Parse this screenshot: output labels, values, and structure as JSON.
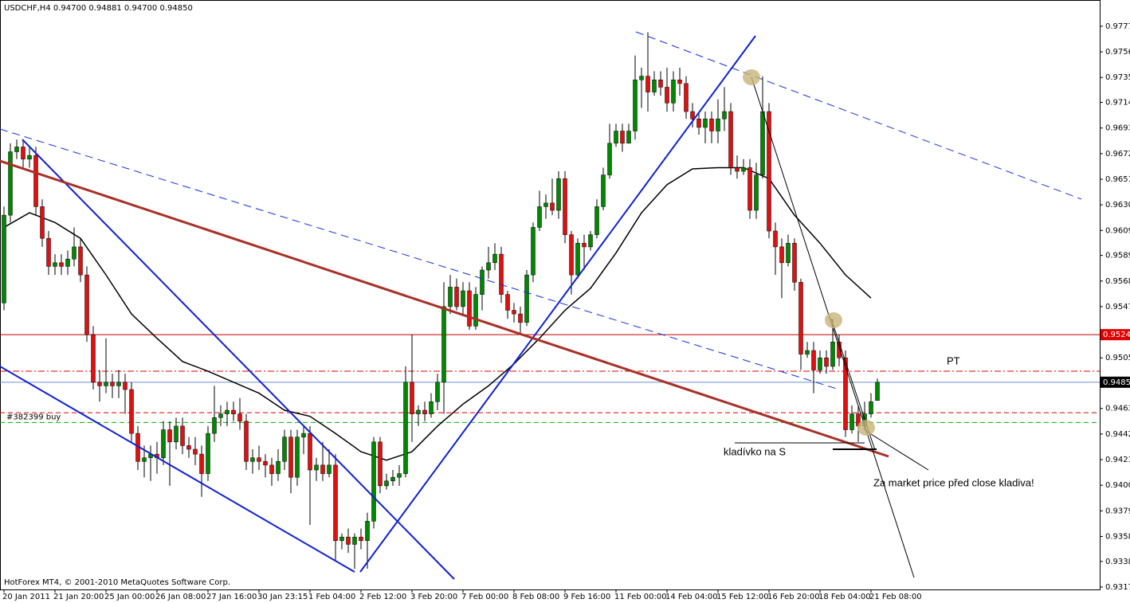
{
  "chart_data": {
    "type": "candlestick",
    "title": "USDCHF,H4  0.94700 0.94881 0.94700 0.94850",
    "footer": "HotForex MT4, © 2001-2010 MetaQuotes Software Corp.",
    "up_color": "#008800",
    "down_color": "#e01010",
    "wick_color": "#000000",
    "ylim": [
      0.9315,
      0.97985
    ],
    "yticks": [
      {
        "value": 0.9777,
        "label": "0.97770"
      },
      {
        "value": 0.9756,
        "label": "0.97560"
      },
      {
        "value": 0.9735,
        "label": "0.97350"
      },
      {
        "value": 0.97145,
        "label": "0.97145"
      },
      {
        "value": 0.96935,
        "label": "0.96935"
      },
      {
        "value": 0.96725,
        "label": "0.96725"
      },
      {
        "value": 0.96515,
        "label": "0.96515"
      },
      {
        "value": 0.96305,
        "label": "0.96305"
      },
      {
        "value": 0.96095,
        "label": "0.96095"
      },
      {
        "value": 0.9589,
        "label": "0.95890"
      },
      {
        "value": 0.9568,
        "label": "0.95680"
      },
      {
        "value": 0.9547,
        "label": "0.95470"
      },
      {
        "value": 0.9505,
        "label": "0.95050"
      },
      {
        "value": 0.94635,
        "label": "0.94635"
      },
      {
        "value": 0.94425,
        "label": "0.94425"
      },
      {
        "value": 0.94215,
        "label": "0.94215"
      },
      {
        "value": 0.94005,
        "label": "0.94005"
      },
      {
        "value": 0.93795,
        "label": "0.93795"
      },
      {
        "value": 0.93585,
        "label": "0.93585"
      },
      {
        "value": 0.9338,
        "label": "0.93380"
      },
      {
        "value": 0.9317,
        "label": "0.93170"
      }
    ],
    "categories": [
      "20 Jan 2011",
      null,
      null,
      null,
      null,
      null,
      null,
      null,
      "21 Jan 20:00",
      null,
      null,
      null,
      null,
      null,
      null,
      null,
      "25 Jan 00:00",
      null,
      null,
      null,
      null,
      null,
      null,
      null,
      "26 Jan 08:00",
      null,
      null,
      null,
      null,
      null,
      null,
      null,
      "27 Jan 16:00",
      null,
      null,
      null,
      null,
      null,
      null,
      null,
      "30 Jan 23:15",
      null,
      null,
      null,
      null,
      null,
      null,
      null,
      "1 Feb 04:00",
      null,
      null,
      null,
      null,
      null,
      null,
      null,
      "2 Feb 12:00",
      null,
      null,
      null,
      null,
      null,
      null,
      null,
      "3 Feb 20:00",
      null,
      null,
      null,
      null,
      null,
      null,
      null,
      "7 Feb 00:00",
      null,
      null,
      null,
      null,
      null,
      null,
      null,
      "8 Feb 08:00",
      null,
      null,
      null,
      null,
      null,
      null,
      null,
      "9 Feb 16:00",
      null,
      null,
      null,
      null,
      null,
      null,
      null,
      "11 Feb 00:00",
      null,
      null,
      null,
      null,
      null,
      null,
      null,
      "14 Feb 04:00",
      null,
      null,
      null,
      null,
      null,
      null,
      null,
      "15 Feb 12:00",
      null,
      null,
      null,
      null,
      null,
      null,
      null,
      "16 Feb 20:00",
      null,
      null,
      null,
      null,
      null,
      null,
      null,
      "18 Feb 04:00",
      null,
      null,
      null,
      null,
      null,
      null,
      null,
      "21 Feb 08:00",
      null
    ],
    "ohlc": [
      [
        0.955,
        0.9629,
        0.9544,
        0.9622
      ],
      [
        0.9622,
        0.9681,
        0.9616,
        0.9674
      ],
      [
        0.9674,
        0.9684,
        0.9668,
        0.9678
      ],
      [
        0.9678,
        0.9684,
        0.9661,
        0.9668
      ],
      [
        0.9668,
        0.9678,
        0.9661,
        0.9671
      ],
      [
        0.9671,
        0.9678,
        0.9622,
        0.9629
      ],
      [
        0.9629,
        0.9635,
        0.9596,
        0.9603
      ],
      [
        0.9603,
        0.9609,
        0.9573,
        0.958
      ],
      [
        0.958,
        0.959,
        0.9573,
        0.9583
      ],
      [
        0.9583,
        0.959,
        0.9573,
        0.958
      ],
      [
        0.958,
        0.9593,
        0.9573,
        0.9586
      ],
      [
        0.9586,
        0.9612,
        0.958,
        0.9596
      ],
      [
        0.9596,
        0.9603,
        0.9567,
        0.9573
      ],
      [
        0.9573,
        0.958,
        0.9518,
        0.9524
      ],
      [
        0.9524,
        0.9531,
        0.9479,
        0.9485
      ],
      [
        0.9485,
        0.9495,
        0.9469,
        0.9482
      ],
      [
        0.9482,
        0.9521,
        0.9476,
        0.9485
      ],
      [
        0.9485,
        0.9492,
        0.9472,
        0.9482
      ],
      [
        0.9482,
        0.9495,
        0.9472,
        0.9485
      ],
      [
        0.9485,
        0.9492,
        0.9459,
        0.9479
      ],
      [
        0.9479,
        0.9485,
        0.9436,
        0.9443
      ],
      [
        0.9443,
        0.9449,
        0.9413,
        0.942
      ],
      [
        0.942,
        0.9433,
        0.9407,
        0.9423
      ],
      [
        0.9423,
        0.9433,
        0.9404,
        0.9426
      ],
      [
        0.9426,
        0.9436,
        0.941,
        0.9423
      ],
      [
        0.9423,
        0.9453,
        0.9417,
        0.9446
      ],
      [
        0.9446,
        0.9453,
        0.94,
        0.9436
      ],
      [
        0.9436,
        0.9456,
        0.943,
        0.9449
      ],
      [
        0.9449,
        0.9456,
        0.9426,
        0.9433
      ],
      [
        0.9433,
        0.944,
        0.9423,
        0.943
      ],
      [
        0.943,
        0.944,
        0.9417,
        0.9426
      ],
      [
        0.9426,
        0.9433,
        0.9391,
        0.941
      ],
      [
        0.941,
        0.9449,
        0.9404,
        0.9443
      ],
      [
        0.9443,
        0.9482,
        0.9436,
        0.9456
      ],
      [
        0.9456,
        0.9466,
        0.9449,
        0.9459
      ],
      [
        0.9459,
        0.9469,
        0.9449,
        0.9462
      ],
      [
        0.9462,
        0.9469,
        0.9453,
        0.9459
      ],
      [
        0.9459,
        0.9472,
        0.9446,
        0.9453
      ],
      [
        0.9453,
        0.9459,
        0.9413,
        0.942
      ],
      [
        0.942,
        0.943,
        0.941,
        0.9423
      ],
      [
        0.9423,
        0.9433,
        0.9413,
        0.942
      ],
      [
        0.942,
        0.9426,
        0.9407,
        0.9417
      ],
      [
        0.9417,
        0.9423,
        0.94,
        0.941
      ],
      [
        0.941,
        0.943,
        0.9404,
        0.942
      ],
      [
        0.942,
        0.9446,
        0.9413,
        0.944
      ],
      [
        0.944,
        0.9446,
        0.9394,
        0.9407
      ],
      [
        0.9407,
        0.9446,
        0.94,
        0.944
      ],
      [
        0.944,
        0.9449,
        0.9426,
        0.9443
      ],
      [
        0.9443,
        0.9449,
        0.9368,
        0.9413
      ],
      [
        0.9413,
        0.9423,
        0.9404,
        0.9417
      ],
      [
        0.9417,
        0.9436,
        0.9404,
        0.941
      ],
      [
        0.941,
        0.943,
        0.9407,
        0.9417
      ],
      [
        0.9417,
        0.9426,
        0.9338,
        0.9355
      ],
      [
        0.9355,
        0.9361,
        0.9348,
        0.9358
      ],
      [
        0.9358,
        0.9365,
        0.9345,
        0.9352
      ],
      [
        0.9352,
        0.9361,
        0.9332,
        0.9358
      ],
      [
        0.9358,
        0.9365,
        0.9348,
        0.9355
      ],
      [
        0.9355,
        0.9378,
        0.9332,
        0.9371
      ],
      [
        0.9371,
        0.944,
        0.9365,
        0.9436
      ],
      [
        0.9436,
        0.944,
        0.9394,
        0.94
      ],
      [
        0.94,
        0.941,
        0.9397,
        0.9404
      ],
      [
        0.9404,
        0.9413,
        0.94,
        0.9407
      ],
      [
        0.9407,
        0.9417,
        0.94,
        0.941
      ],
      [
        0.941,
        0.9498,
        0.9407,
        0.9485
      ],
      [
        0.9485,
        0.9524,
        0.9436,
        0.9459
      ],
      [
        0.9459,
        0.9466,
        0.9449,
        0.9462
      ],
      [
        0.9462,
        0.9469,
        0.9453,
        0.9459
      ],
      [
        0.9459,
        0.9476,
        0.9456,
        0.9469
      ],
      [
        0.9469,
        0.9492,
        0.9462,
        0.9485
      ],
      [
        0.9485,
        0.9567,
        0.9459,
        0.9547
      ],
      [
        0.9547,
        0.9573,
        0.9541,
        0.9563
      ],
      [
        0.9563,
        0.957,
        0.9544,
        0.9547
      ],
      [
        0.9547,
        0.9567,
        0.9541,
        0.956
      ],
      [
        0.956,
        0.9567,
        0.9528,
        0.9531
      ],
      [
        0.9531,
        0.9563,
        0.9528,
        0.9557
      ],
      [
        0.9557,
        0.958,
        0.9544,
        0.9577
      ],
      [
        0.9577,
        0.9596,
        0.957,
        0.9583
      ],
      [
        0.9583,
        0.9599,
        0.9577,
        0.959
      ],
      [
        0.959,
        0.9596,
        0.955,
        0.9557
      ],
      [
        0.9557,
        0.956,
        0.9537,
        0.9544
      ],
      [
        0.9544,
        0.955,
        0.9534,
        0.9541
      ],
      [
        0.9541,
        0.9547,
        0.9524,
        0.9534
      ],
      [
        0.9534,
        0.9577,
        0.9531,
        0.9573
      ],
      [
        0.9573,
        0.9616,
        0.9567,
        0.9612
      ],
      [
        0.9612,
        0.9642,
        0.9609,
        0.9629
      ],
      [
        0.9629,
        0.9639,
        0.9619,
        0.9632
      ],
      [
        0.9632,
        0.9652,
        0.9622,
        0.9626
      ],
      [
        0.9626,
        0.9658,
        0.9619,
        0.9652
      ],
      [
        0.9652,
        0.9658,
        0.9599,
        0.9606
      ],
      [
        0.9606,
        0.9609,
        0.9557,
        0.9573
      ],
      [
        0.9573,
        0.9603,
        0.957,
        0.9599
      ],
      [
        0.9599,
        0.9606,
        0.9577,
        0.9596
      ],
      [
        0.9596,
        0.9609,
        0.9593,
        0.9606
      ],
      [
        0.9606,
        0.9635,
        0.9603,
        0.9629
      ],
      [
        0.9629,
        0.9661,
        0.9626,
        0.9655
      ],
      [
        0.9655,
        0.9697,
        0.9652,
        0.9681
      ],
      [
        0.9681,
        0.9697,
        0.9678,
        0.9691
      ],
      [
        0.9691,
        0.9697,
        0.9674,
        0.9681
      ],
      [
        0.9681,
        0.9697,
        0.9684,
        0.9691
      ],
      [
        0.9691,
        0.9753,
        0.9684,
        0.9733
      ],
      [
        0.9733,
        0.9743,
        0.971,
        0.9736
      ],
      [
        0.9736,
        0.9772,
        0.9707,
        0.9723
      ],
      [
        0.9723,
        0.974,
        0.972,
        0.9733
      ],
      [
        0.9733,
        0.974,
        0.972,
        0.9727
      ],
      [
        0.9727,
        0.9743,
        0.9707,
        0.9714
      ],
      [
        0.9714,
        0.974,
        0.9707,
        0.9733
      ],
      [
        0.9733,
        0.9743,
        0.972,
        0.973
      ],
      [
        0.973,
        0.9736,
        0.9701,
        0.9707
      ],
      [
        0.9707,
        0.9714,
        0.9694,
        0.9701
      ],
      [
        0.9701,
        0.9707,
        0.9688,
        0.9694
      ],
      [
        0.9694,
        0.9707,
        0.9681,
        0.9701
      ],
      [
        0.9701,
        0.9707,
        0.9681,
        0.9691
      ],
      [
        0.9691,
        0.9717,
        0.9681,
        0.9701
      ],
      [
        0.9701,
        0.9727,
        0.9691,
        0.9707
      ],
      [
        0.9707,
        0.9714,
        0.9655,
        0.9661
      ],
      [
        0.9661,
        0.9671,
        0.9652,
        0.9658
      ],
      [
        0.9658,
        0.9668,
        0.9655,
        0.9661
      ],
      [
        0.9661,
        0.9668,
        0.9619,
        0.9626
      ],
      [
        0.9626,
        0.9665,
        0.9619,
        0.9655
      ],
      [
        0.9655,
        0.9736,
        0.9652,
        0.9707
      ],
      [
        0.9707,
        0.9714,
        0.9603,
        0.9609
      ],
      [
        0.9609,
        0.9616,
        0.9573,
        0.9596
      ],
      [
        0.9596,
        0.9603,
        0.9554,
        0.9583
      ],
      [
        0.9583,
        0.9606,
        0.958,
        0.9599
      ],
      [
        0.9599,
        0.9603,
        0.956,
        0.9567
      ],
      [
        0.9567,
        0.957,
        0.9495,
        0.9508
      ],
      [
        0.9508,
        0.9518,
        0.9505,
        0.9511
      ],
      [
        0.9511,
        0.9518,
        0.9476,
        0.9495
      ],
      [
        0.9495,
        0.9511,
        0.9492,
        0.9505
      ],
      [
        0.9505,
        0.9511,
        0.9492,
        0.9498
      ],
      [
        0.9498,
        0.9537,
        0.9495,
        0.9518
      ],
      [
        0.9518,
        0.9524,
        0.9498,
        0.9505
      ],
      [
        0.9505,
        0.9511,
        0.944,
        0.9446
      ],
      [
        0.9446,
        0.9466,
        0.9443,
        0.9459
      ],
      [
        0.9459,
        0.9466,
        0.9436,
        0.9449
      ],
      [
        0.9449,
        0.9469,
        0.9446,
        0.9459
      ],
      [
        0.9459,
        0.9476,
        0.9456,
        0.9469
      ],
      [
        0.947,
        0.94881,
        0.947,
        0.9485
      ]
    ],
    "lines": [
      {
        "color": "#000000",
        "x": [
          0,
          4,
          8,
          12,
          16,
          20,
          24,
          28,
          32,
          36,
          40,
          44,
          48,
          52,
          56,
          60,
          64,
          68,
          72,
          76,
          80,
          84,
          88,
          92,
          96,
          100,
          104,
          108,
          112,
          116,
          120,
          124,
          128,
          132,
          136
        ],
        "values": [
          0.9612,
          0.9624,
          0.9616,
          0.9603,
          0.9573,
          0.9541,
          0.9521,
          0.9502,
          0.9494,
          0.9485,
          0.9476,
          0.9462,
          0.9457,
          0.9443,
          0.9428,
          0.9421,
          0.9428,
          0.9449,
          0.9467,
          0.9482,
          0.95,
          0.9521,
          0.9544,
          0.9562,
          0.9591,
          0.9624,
          0.9647,
          0.966,
          0.9661,
          0.9661,
          0.9652,
          0.9622,
          0.9599,
          0.9573,
          0.9554
        ]
      }
    ],
    "hlines": [
      {
        "value": 0.9524,
        "label": "0.95240",
        "color": "#c00000",
        "style": "solid",
        "label_bg": "#e00000",
        "label_color": "#ffffff",
        "label_side": "right"
      },
      {
        "value": 0.9485,
        "label": "0.94850",
        "color": "#7090d0",
        "style": "solid",
        "label_bg": "#000000",
        "label_color": "#ffffff",
        "label_side": "right"
      },
      {
        "value": 0.9494,
        "color": "#e00000",
        "style": "dashdot"
      },
      {
        "value": 0.946,
        "color": "#e00000",
        "style": "dash"
      },
      {
        "value": 0.9452,
        "label": "#382399 buy",
        "color": "#00b000",
        "style": "dash",
        "label_color": "#000000",
        "label_side": "left"
      }
    ],
    "annotations": [
      "PT",
      "kladívko na S",
      "Za market price před close kladiva!"
    ]
  }
}
